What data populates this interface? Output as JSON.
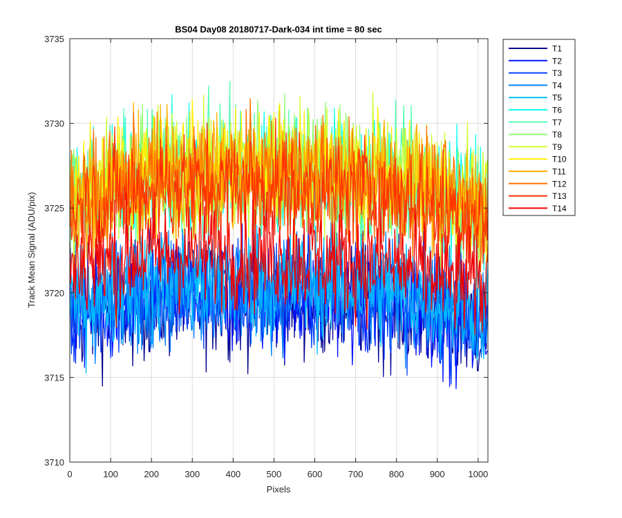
{
  "chart_data": {
    "type": "line",
    "title": "BS04 Day08 20180717-Dark-034 int time = 80 sec",
    "xlabel": "Pixels",
    "ylabel": "Track Mean Signal (ADU/pix)",
    "xlim": [
      0,
      1024
    ],
    "ylim": [
      3710,
      3735
    ],
    "xticks": [
      0,
      100,
      200,
      300,
      400,
      500,
      600,
      700,
      800,
      900,
      1000
    ],
    "yticks": [
      3710,
      3715,
      3720,
      3725,
      3730,
      3735
    ],
    "grid": true,
    "legend_position": "outside-top-right",
    "series": [
      {
        "name": "T1",
        "color": "#00008f",
        "mean": [
          [
            0,
            3718.5
          ],
          [
            200,
            3719.5
          ],
          [
            512,
            3719.6
          ],
          [
            800,
            3719.2
          ],
          [
            1024,
            3717.8
          ]
        ],
        "noise": 1.7
      },
      {
        "name": "T2",
        "color": "#0010ff",
        "mean": [
          [
            0,
            3718.8
          ],
          [
            200,
            3719.8
          ],
          [
            512,
            3719.9
          ],
          [
            800,
            3719.5
          ],
          [
            1024,
            3718.0
          ]
        ],
        "noise": 1.7
      },
      {
        "name": "T3",
        "color": "#0040ff",
        "mean": [
          [
            0,
            3719.0
          ],
          [
            200,
            3720.0
          ],
          [
            512,
            3720.1
          ],
          [
            800,
            3719.7
          ],
          [
            1024,
            3718.3
          ]
        ],
        "noise": 1.7
      },
      {
        "name": "T4",
        "color": "#0080ff",
        "mean": [
          [
            0,
            3719.2
          ],
          [
            200,
            3720.2
          ],
          [
            512,
            3720.3
          ],
          [
            800,
            3719.9
          ],
          [
            1024,
            3718.5
          ]
        ],
        "noise": 1.7
      },
      {
        "name": "T5",
        "color": "#00c0ff",
        "mean": [
          [
            0,
            3719.6
          ],
          [
            200,
            3720.6
          ],
          [
            512,
            3720.7
          ],
          [
            800,
            3720.3
          ],
          [
            1024,
            3719.0
          ]
        ],
        "noise": 1.7
      },
      {
        "name": "T6",
        "color": "#10ffef",
        "mean": [
          [
            0,
            3725.5
          ],
          [
            200,
            3727.0
          ],
          [
            512,
            3727.2
          ],
          [
            800,
            3726.6
          ],
          [
            1024,
            3725.0
          ]
        ],
        "noise": 1.8
      },
      {
        "name": "T7",
        "color": "#50ffaf",
        "mean": [
          [
            0,
            3725.5
          ],
          [
            200,
            3727.0
          ],
          [
            512,
            3727.3
          ],
          [
            800,
            3726.6
          ],
          [
            1024,
            3725.0
          ]
        ],
        "noise": 1.8
      },
      {
        "name": "T8",
        "color": "#8fff70",
        "mean": [
          [
            0,
            3725.6
          ],
          [
            200,
            3727.2
          ],
          [
            512,
            3727.4
          ],
          [
            800,
            3726.8
          ],
          [
            1024,
            3725.1
          ]
        ],
        "noise": 1.8
      },
      {
        "name": "T9",
        "color": "#cfff30",
        "mean": [
          [
            0,
            3725.6
          ],
          [
            200,
            3727.3
          ],
          [
            512,
            3727.5
          ],
          [
            800,
            3726.9
          ],
          [
            1024,
            3725.2
          ]
        ],
        "noise": 1.8
      },
      {
        "name": "T10",
        "color": "#ffef00",
        "mean": [
          [
            0,
            3725.5
          ],
          [
            200,
            3727.2
          ],
          [
            512,
            3727.4
          ],
          [
            800,
            3726.8
          ],
          [
            1024,
            3725.1
          ]
        ],
        "noise": 1.8
      },
      {
        "name": "T11",
        "color": "#ffb000",
        "mean": [
          [
            0,
            3725.4
          ],
          [
            200,
            3727.0
          ],
          [
            512,
            3727.2
          ],
          [
            800,
            3726.6
          ],
          [
            1024,
            3725.0
          ]
        ],
        "noise": 1.7
      },
      {
        "name": "T12",
        "color": "#ff7000",
        "mean": [
          [
            0,
            3725.2
          ],
          [
            200,
            3726.8
          ],
          [
            512,
            3727.0
          ],
          [
            800,
            3726.4
          ],
          [
            1024,
            3724.8
          ]
        ],
        "noise": 1.7
      },
      {
        "name": "T13",
        "color": "#ff3000",
        "mean": [
          [
            0,
            3724.8
          ],
          [
            200,
            3726.2
          ],
          [
            512,
            3726.3
          ],
          [
            800,
            3725.7
          ],
          [
            1024,
            3724.2
          ]
        ],
        "noise": 1.7
      },
      {
        "name": "T14",
        "color": "#ef0000",
        "mean": [
          [
            0,
            3721.5
          ],
          [
            200,
            3722.3
          ],
          [
            512,
            3722.2
          ],
          [
            800,
            3721.6
          ],
          [
            1024,
            3720.2
          ]
        ],
        "noise": 1.6
      }
    ]
  }
}
